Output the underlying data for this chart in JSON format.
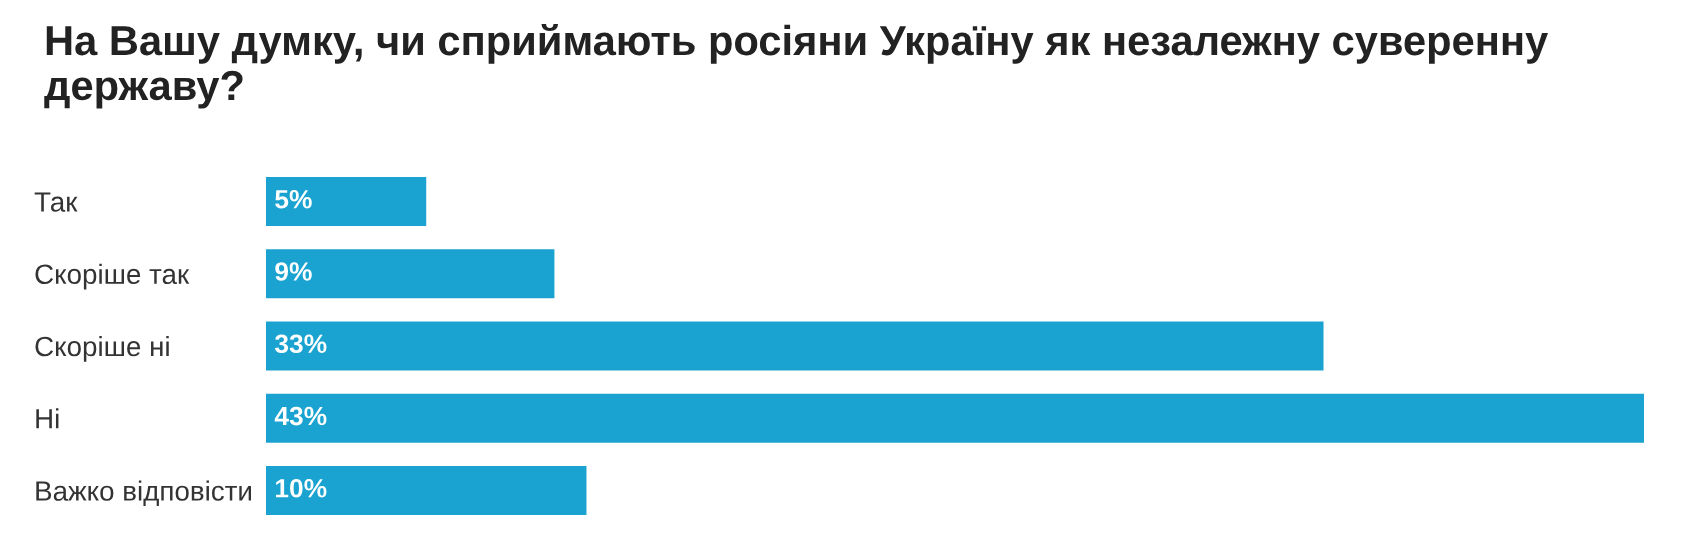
{
  "chart_data": {
    "type": "bar",
    "orientation": "horizontal",
    "title": "На Вашу думку, чи сприймають росіяни Україну як незалежну суверенну державу?",
    "categories": [
      "Так",
      "Скоріше так",
      "Скоріше ні",
      "Ні",
      "Важко відповісти"
    ],
    "values": [
      5,
      9,
      33,
      43,
      10
    ],
    "value_labels": [
      "5%",
      "9%",
      "33%",
      "43%",
      "10%"
    ],
    "color": "#1aa3d0",
    "tick_labels": "y",
    "grid": false,
    "legend": false
  }
}
